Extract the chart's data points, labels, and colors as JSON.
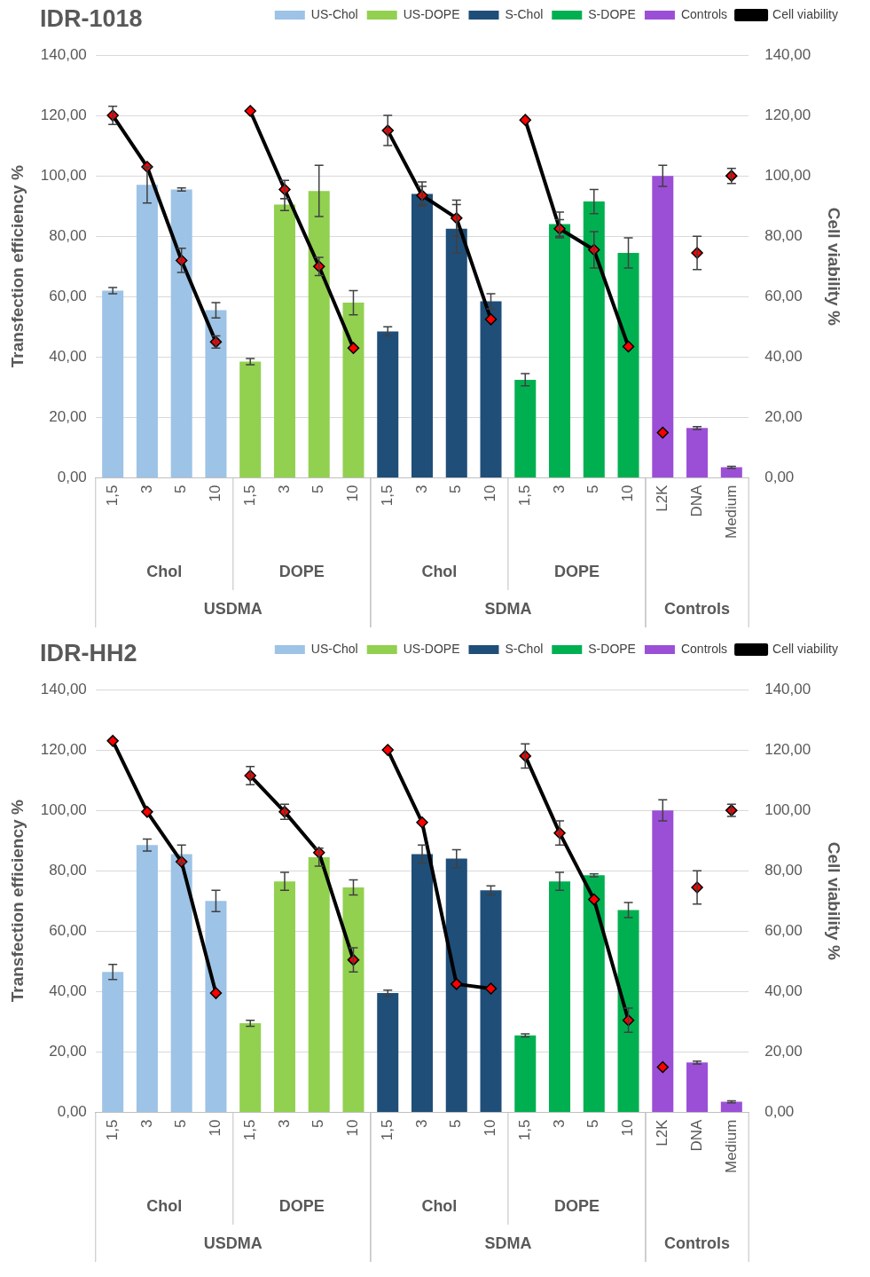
{
  "chart_data": [
    {
      "type": "bar",
      "title": "IDR-1018",
      "ylabel": "Transfection efficiency %",
      "y2label": "Cell viability %",
      "legend": "top right",
      "grid": "y",
      "marker": "diamond",
      "categories": [
        "1,5",
        "3",
        "5",
        "10",
        "1,5",
        "3",
        "5",
        "10",
        "1,5",
        "3",
        "5",
        "10",
        "1,5",
        "3",
        "5",
        "10",
        "L2K",
        "DNA",
        "Medium"
      ],
      "ylim": [
        0,
        140
      ],
      "yticks": [
        {
          "value": 0,
          "label": "0,00"
        },
        {
          "value": 20,
          "label": "20,00"
        },
        {
          "value": 40,
          "label": "40,00"
        },
        {
          "value": 60,
          "label": "60,00"
        },
        {
          "value": 80,
          "label": "80,00"
        },
        {
          "value": 100,
          "label": "100,00"
        },
        {
          "value": 120,
          "label": "120,00"
        },
        {
          "value": 140,
          "label": "140,00"
        }
      ],
      "y2lim": [
        0,
        140
      ],
      "y2ticks": [
        {
          "value": 0,
          "label": "0,00"
        },
        {
          "value": 20,
          "label": "20,00"
        },
        {
          "value": 40,
          "label": "40,00"
        },
        {
          "value": 60,
          "label": "60,00"
        },
        {
          "value": 80,
          "label": "80,00"
        },
        {
          "value": 100,
          "label": "100,00"
        },
        {
          "value": 120,
          "label": "120,00"
        },
        {
          "value": 140,
          "label": "140,00"
        }
      ],
      "series": [
        {
          "name": "US-Chol",
          "color": "#9dc3e6",
          "values": [
            62,
            97,
            95.5,
            55.5,
            null,
            null,
            null,
            null,
            null,
            null,
            null,
            null,
            null,
            null,
            null,
            null,
            null,
            null,
            null
          ],
          "errors": [
            1,
            6,
            0.5,
            2.5,
            null,
            null,
            null,
            null,
            null,
            null,
            null,
            null,
            null,
            null,
            null,
            null,
            null,
            null,
            null
          ]
        },
        {
          "name": "US-DOPE",
          "color": "#92d050",
          "values": [
            null,
            null,
            null,
            null,
            38.5,
            90.5,
            95,
            58,
            null,
            null,
            null,
            null,
            null,
            null,
            null,
            null,
            null,
            null,
            null
          ],
          "errors": [
            null,
            null,
            null,
            null,
            1,
            2,
            8.5,
            4,
            null,
            null,
            null,
            null,
            null,
            null,
            null,
            null,
            null,
            null,
            null
          ]
        },
        {
          "name": "S-Chol",
          "color": "#1f4e79",
          "values": [
            null,
            null,
            null,
            null,
            null,
            null,
            null,
            null,
            48.5,
            94,
            82.5,
            58.5,
            null,
            null,
            null,
            null,
            null,
            null,
            null
          ],
          "errors": [
            null,
            null,
            null,
            null,
            null,
            null,
            null,
            null,
            1.5,
            4,
            8,
            2.5,
            null,
            null,
            null,
            null,
            null,
            null,
            null
          ]
        },
        {
          "name": "S-DOPE",
          "color": "#00b050",
          "values": [
            null,
            null,
            null,
            null,
            null,
            null,
            null,
            null,
            null,
            null,
            null,
            null,
            32.5,
            84,
            91.5,
            74.5,
            null,
            null,
            null
          ],
          "errors": [
            null,
            null,
            null,
            null,
            null,
            null,
            null,
            null,
            null,
            null,
            null,
            null,
            2,
            4,
            4,
            5,
            null,
            null,
            null
          ]
        },
        {
          "name": "Controls",
          "color": "#9b4fd6",
          "values": [
            null,
            null,
            null,
            null,
            null,
            null,
            null,
            null,
            null,
            null,
            null,
            null,
            null,
            null,
            null,
            null,
            100,
            16.5,
            3.5
          ],
          "errors": [
            null,
            null,
            null,
            null,
            null,
            null,
            null,
            null,
            null,
            null,
            null,
            null,
            null,
            null,
            null,
            null,
            3.5,
            0.5,
            0.3
          ]
        },
        {
          "name": "Cell viability",
          "type": "line",
          "axis": "y2",
          "color": "#000000",
          "values": [
            120,
            103,
            72,
            45,
            121.5,
            95.5,
            70,
            43,
            115,
            93.5,
            86,
            52.5,
            118.5,
            82.5,
            75.5,
            43.5,
            null,
            null,
            null
          ],
          "errors": [
            3,
            null,
            4,
            2,
            null,
            3,
            3,
            null,
            5,
            3,
            6,
            null,
            null,
            3,
            6,
            null,
            null,
            null,
            null
          ]
        },
        {
          "type": "scatter",
          "axis": "y2",
          "color": "#000000",
          "values": [
            null,
            null,
            null,
            null,
            null,
            null,
            null,
            null,
            null,
            null,
            null,
            null,
            null,
            null,
            null,
            null,
            15,
            74.5,
            100
          ],
          "errors": [
            null,
            null,
            null,
            null,
            null,
            null,
            null,
            null,
            null,
            null,
            null,
            null,
            null,
            null,
            null,
            null,
            null,
            5.5,
            2.5
          ]
        }
      ],
      "annotations": [
        "Chol",
        "DOPE",
        "Chol",
        "DOPE",
        "USDMA",
        "SDMA",
        "Controls"
      ]
    },
    {
      "type": "bar",
      "title": "IDR-HH2",
      "ylabel": "Transfection efficiency %",
      "y2label": "Cell viability %",
      "legend": "top right",
      "grid": "y",
      "marker": "diamond",
      "categories": [
        "1,5",
        "3",
        "5",
        "10",
        "1,5",
        "3",
        "5",
        "10",
        "1,5",
        "3",
        "5",
        "10",
        "1,5",
        "3",
        "5",
        "10",
        "L2K",
        "DNA",
        "Medium"
      ],
      "ylim": [
        0,
        140
      ],
      "yticks": [
        {
          "value": 0,
          "label": "0,00"
        },
        {
          "value": 20,
          "label": "20,00"
        },
        {
          "value": 40,
          "label": "40,00"
        },
        {
          "value": 60,
          "label": "60,00"
        },
        {
          "value": 80,
          "label": "80,00"
        },
        {
          "value": 100,
          "label": "100,00"
        },
        {
          "value": 120,
          "label": "120,00"
        },
        {
          "value": 140,
          "label": "140,00"
        }
      ],
      "y2lim": [
        0,
        140
      ],
      "y2ticks": [
        {
          "value": 0,
          "label": "0,00"
        },
        {
          "value": 20,
          "label": "20,00"
        },
        {
          "value": 40,
          "label": "40,00"
        },
        {
          "value": 60,
          "label": "60,00"
        },
        {
          "value": 80,
          "label": "80,00"
        },
        {
          "value": 100,
          "label": "100,00"
        },
        {
          "value": 120,
          "label": "120,00"
        },
        {
          "value": 140,
          "label": "140,00"
        }
      ],
      "series": [
        {
          "name": "US-Chol",
          "color": "#9dc3e6",
          "values": [
            46.5,
            88.5,
            85.5,
            70,
            null,
            null,
            null,
            null,
            null,
            null,
            null,
            null,
            null,
            null,
            null,
            null,
            null,
            null,
            null
          ],
          "errors": [
            2.5,
            2,
            3,
            3.5,
            null,
            null,
            null,
            null,
            null,
            null,
            null,
            null,
            null,
            null,
            null,
            null,
            null,
            null,
            null
          ]
        },
        {
          "name": "US-DOPE",
          "color": "#92d050",
          "values": [
            null,
            null,
            null,
            null,
            29.5,
            76.5,
            84.5,
            74.5,
            null,
            null,
            null,
            null,
            null,
            null,
            null,
            null,
            null,
            null,
            null
          ],
          "errors": [
            null,
            null,
            null,
            null,
            1,
            3,
            3,
            2.5,
            null,
            null,
            null,
            null,
            null,
            null,
            null,
            null,
            null,
            null,
            null
          ]
        },
        {
          "name": "S-Chol",
          "color": "#1f4e79",
          "values": [
            null,
            null,
            null,
            null,
            null,
            null,
            null,
            null,
            39.5,
            85.5,
            84,
            73.5,
            null,
            null,
            null,
            null,
            null,
            null,
            null
          ],
          "errors": [
            null,
            null,
            null,
            null,
            null,
            null,
            null,
            null,
            1,
            3,
            3,
            1.5,
            null,
            null,
            null,
            null,
            null,
            null,
            null
          ]
        },
        {
          "name": "S-DOPE",
          "color": "#00b050",
          "values": [
            null,
            null,
            null,
            null,
            null,
            null,
            null,
            null,
            null,
            null,
            null,
            null,
            25.5,
            76.5,
            78.5,
            67,
            null,
            null,
            null
          ],
          "errors": [
            null,
            null,
            null,
            null,
            null,
            null,
            null,
            null,
            null,
            null,
            null,
            null,
            0.5,
            3,
            0.5,
            2.5,
            null,
            null,
            null
          ]
        },
        {
          "name": "Controls",
          "color": "#9b4fd6",
          "values": [
            null,
            null,
            null,
            null,
            null,
            null,
            null,
            null,
            null,
            null,
            null,
            null,
            null,
            null,
            null,
            null,
            100,
            16.5,
            3.5
          ],
          "errors": [
            null,
            null,
            null,
            null,
            null,
            null,
            null,
            null,
            null,
            null,
            null,
            null,
            null,
            null,
            null,
            null,
            3.5,
            0.5,
            0.3
          ]
        },
        {
          "name": "Cell viability",
          "type": "line",
          "axis": "y2",
          "color": "#000000",
          "values": [
            123,
            99.5,
            83,
            39.5,
            111.5,
            99.5,
            86,
            50.5,
            120,
            96,
            42.5,
            41,
            118,
            92.5,
            70.5,
            30.5,
            null,
            null,
            null
          ],
          "errors": [
            null,
            null,
            null,
            null,
            3,
            2.5,
            null,
            4,
            null,
            null,
            null,
            null,
            4,
            4,
            null,
            4,
            null,
            null,
            null
          ]
        },
        {
          "type": "scatter",
          "axis": "y2",
          "color": "#000000",
          "values": [
            null,
            null,
            null,
            null,
            null,
            null,
            null,
            null,
            null,
            null,
            null,
            null,
            null,
            null,
            null,
            null,
            15,
            74.5,
            100
          ],
          "errors": [
            null,
            null,
            null,
            null,
            null,
            null,
            null,
            null,
            null,
            null,
            null,
            null,
            null,
            null,
            null,
            null,
            null,
            5.5,
            2
          ]
        }
      ],
      "annotations": [
        "Chol",
        "DOPE",
        "Chol",
        "DOPE",
        "USDMA",
        "SDMA",
        "Controls"
      ]
    }
  ]
}
